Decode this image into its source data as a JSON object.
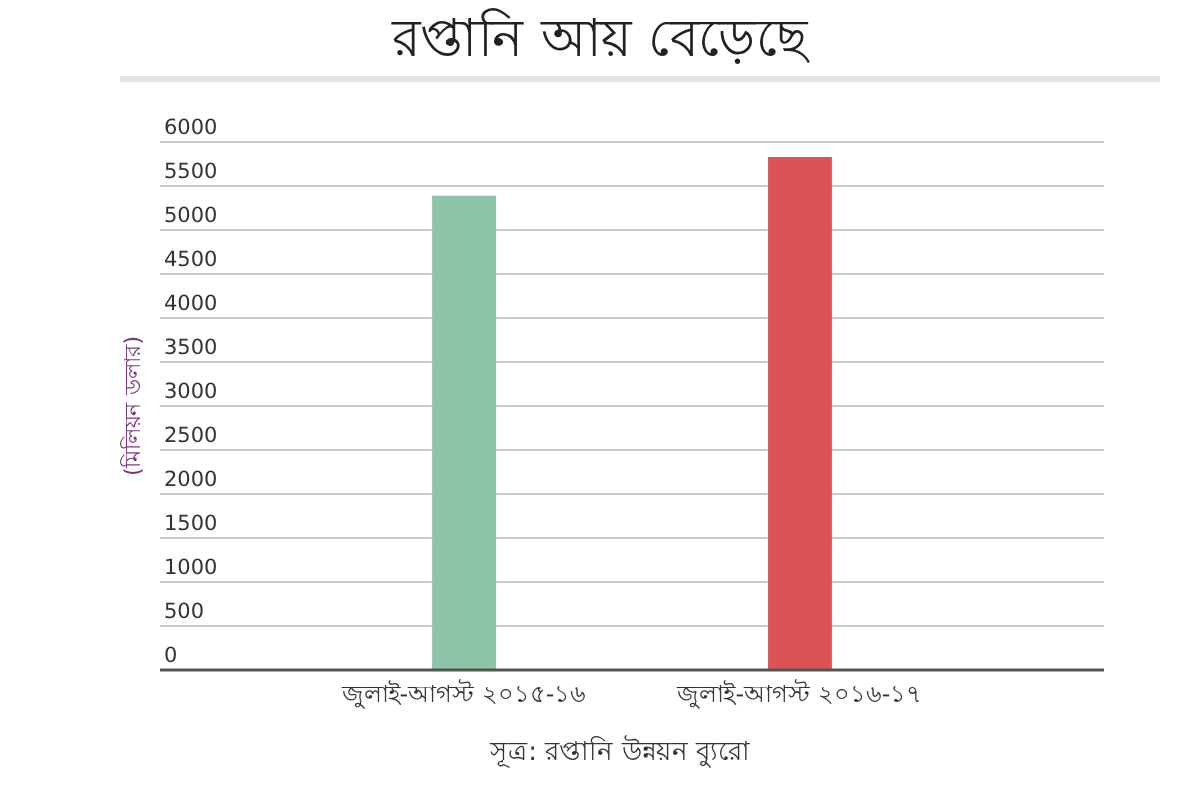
{
  "chart_data": {
    "type": "bar",
    "title": "রপ্তানি আয় বেড়েছে",
    "ylabel": "(মিলিয়ন ডলার)",
    "categories": [
      "জুলাই-আগস্ট ২০১৫-১৬",
      "জুলাই-আগস্ট ২০১৬-১৭"
    ],
    "values": [
      5390,
      5830
    ],
    "colors": [
      "#8dc3a7",
      "#db5355"
    ],
    "ylim": [
      0,
      6000
    ],
    "yticks": [
      0,
      500,
      1000,
      1500,
      2000,
      2500,
      3000,
      3500,
      4000,
      4500,
      5000,
      5500,
      6000
    ],
    "grid": "y",
    "annotations": [
      "সূত্র: রপ্তানি উন্নয়ন ব্যুরো"
    ]
  }
}
